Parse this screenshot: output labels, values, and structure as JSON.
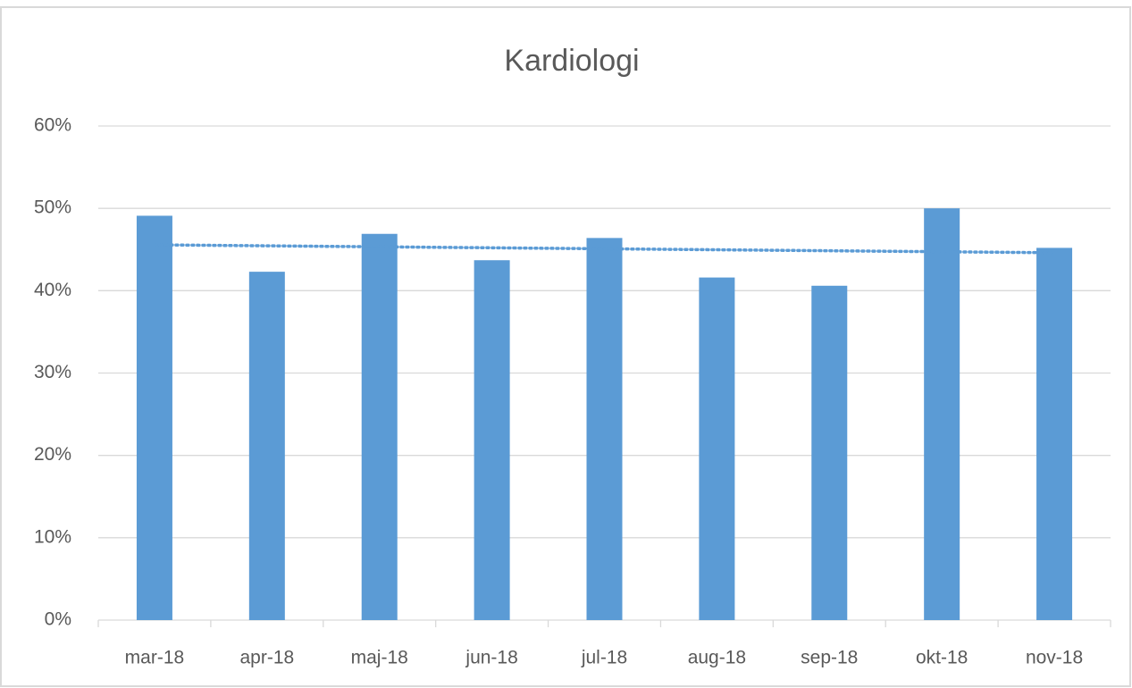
{
  "chart_data": {
    "type": "bar",
    "title": "Kardiologi",
    "categories": [
      "mar-18",
      "apr-18",
      "maj-18",
      "jun-18",
      "jul-18",
      "aug-18",
      "sep-18",
      "okt-18",
      "nov-18"
    ],
    "values": [
      49.1,
      42.3,
      46.9,
      43.7,
      46.4,
      41.6,
      40.6,
      50.0,
      45.2
    ],
    "color": "#5b9bd5",
    "ylim": [
      0,
      60
    ],
    "yticks": [
      {
        "value": 0,
        "label": "0%"
      },
      {
        "value": 10,
        "label": "10%"
      },
      {
        "value": 20,
        "label": "20%"
      },
      {
        "value": 30,
        "label": "30%"
      },
      {
        "value": 40,
        "label": "40%"
      },
      {
        "value": 50,
        "label": "50%"
      },
      {
        "value": 60,
        "label": "60%"
      }
    ],
    "grid": true,
    "trendline": true
  }
}
